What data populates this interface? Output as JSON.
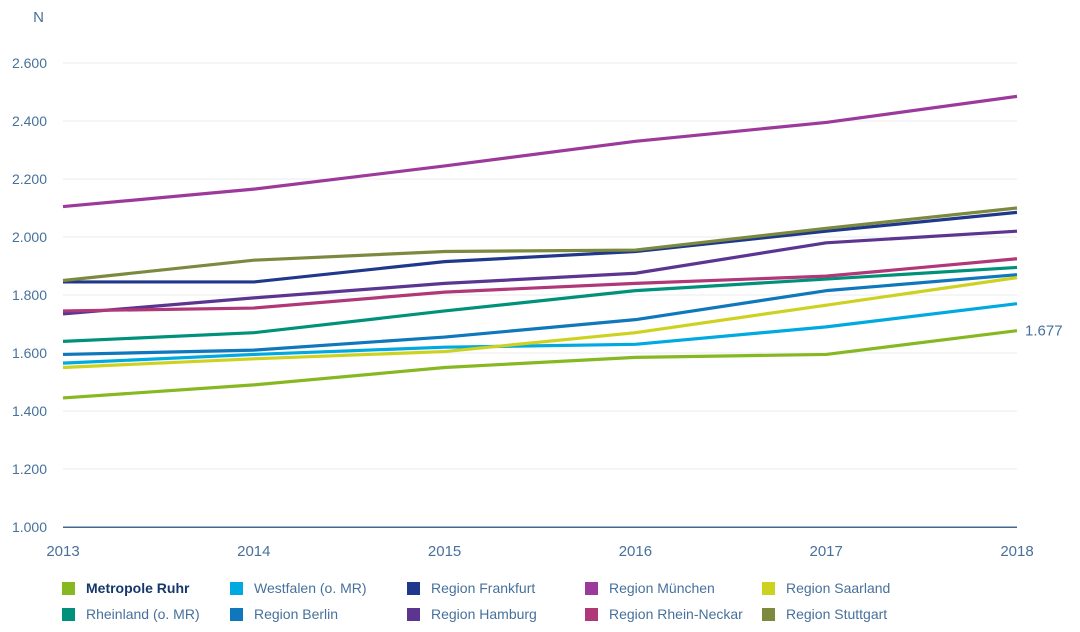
{
  "chart_data": {
    "type": "line",
    "title": "",
    "xlabel": "",
    "ylabel": "N",
    "x": [
      2013,
      2014,
      2015,
      2016,
      2017,
      2018
    ],
    "x_labels": [
      "2013",
      "2014",
      "2015",
      "2016",
      "2017",
      "2018"
    ],
    "ylim": [
      1000,
      2600
    ],
    "grid": "horizontal",
    "legend_position": "bottom",
    "y_ticks": [
      {
        "value": 2600,
        "label": "2.600"
      },
      {
        "value": 2400,
        "label": "2.400"
      },
      {
        "value": 2200,
        "label": "2.200"
      },
      {
        "value": 2000,
        "label": "2.000"
      },
      {
        "value": 1800,
        "label": "1.800"
      },
      {
        "value": 1600,
        "label": "1.600"
      },
      {
        "value": 1400,
        "label": "1.400"
      },
      {
        "value": 1200,
        "label": "1.200"
      },
      {
        "value": 1000,
        "label": "1.000"
      }
    ],
    "series": [
      {
        "name": "Metropole Ruhr",
        "color": "#86b822",
        "emphasis": true,
        "values": [
          1445,
          1490,
          1550,
          1585,
          1595,
          1677
        ]
      },
      {
        "name": "Westfalen (o. MR)",
        "color": "#00a9e0",
        "emphasis": false,
        "values": [
          1565,
          1595,
          1620,
          1630,
          1690,
          1770
        ]
      },
      {
        "name": "Region Frankfurt",
        "color": "#20388c",
        "emphasis": false,
        "values": [
          1845,
          1845,
          1915,
          1950,
          2020,
          2085
        ]
      },
      {
        "name": "Region München",
        "color": "#9c3a9c",
        "emphasis": false,
        "values": [
          2105,
          2165,
          2245,
          2330,
          2395,
          2485
        ]
      },
      {
        "name": "Region Saarland",
        "color": "#cdd221",
        "emphasis": false,
        "values": [
          1550,
          1580,
          1605,
          1670,
          1765,
          1860
        ]
      },
      {
        "name": "Rheinland (o. MR)",
        "color": "#00917a",
        "emphasis": false,
        "values": [
          1640,
          1670,
          1745,
          1815,
          1855,
          1895
        ]
      },
      {
        "name": "Region Berlin",
        "color": "#0f77bb",
        "emphasis": false,
        "values": [
          1595,
          1610,
          1655,
          1715,
          1815,
          1870
        ]
      },
      {
        "name": "Region Hamburg",
        "color": "#5c3591",
        "emphasis": false,
        "values": [
          1735,
          1790,
          1840,
          1875,
          1980,
          2020
        ]
      },
      {
        "name": "Region Rhein-Neckar",
        "color": "#b03878",
        "emphasis": false,
        "values": [
          1745,
          1755,
          1810,
          1840,
          1865,
          1925
        ]
      },
      {
        "name": "Region Stuttgart",
        "color": "#7b8a3e",
        "emphasis": false,
        "values": [
          1850,
          1920,
          1950,
          1955,
          2030,
          2100
        ]
      }
    ],
    "annotation": {
      "text": "1.677",
      "series_index": 0,
      "at_x": 2018
    }
  },
  "style_colors": {
    "tick_text": "#47719c",
    "emphasis_text": "#17376b",
    "grid_line": "#ebebeb",
    "axis_line": "#40688f",
    "background": "#ffffff"
  }
}
